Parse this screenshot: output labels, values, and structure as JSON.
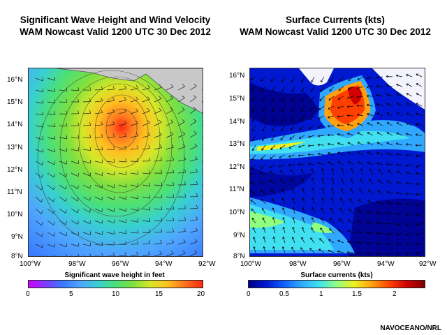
{
  "left_panel": {
    "title_line1": "Significant Wave Height and Wind Velocity",
    "title_line2": "WAM Nowcast Valid 1200 UTC 30 Dec 2012",
    "lat_labels": [
      "16°N",
      "15°N",
      "14°N",
      "13°N",
      "12°N",
      "11°N",
      "10°N",
      "9°N",
      "8°N"
    ],
    "lon_labels": [
      "100°W",
      "98°W",
      "96°W",
      "94°W",
      "92°W"
    ],
    "colorbar_title": "Significant wave height in feet",
    "colorbar_ticks": [
      "0",
      "5",
      "10",
      "15",
      "20"
    ],
    "colorbar_colors": [
      "#d000ff",
      "#7a3cff",
      "#3a7aff",
      "#4fa6ff",
      "#38d0d0",
      "#4be07a",
      "#7ee040",
      "#d8e628",
      "#ffc020",
      "#ff7020",
      "#ff2a10"
    ],
    "contour_labels": [
      "12",
      "14",
      "16",
      "12",
      "13",
      "11",
      "12",
      "13",
      "10",
      "11",
      "12",
      "9",
      "10",
      "9"
    ]
  },
  "right_panel": {
    "title_line1": "Surface Currents (kts)",
    "title_line2": "WAM Nowcast Valid 1200 UTC 30 Dec 2012",
    "lat_labels": [
      "16°N",
      "15°N",
      "14°N",
      "13°N",
      "12°N",
      "11°N",
      "10°N",
      "9°N",
      "8°N"
    ],
    "lon_labels": [
      "100°W",
      "98°W",
      "96°W",
      "94°W",
      "92°W"
    ],
    "colorbar_title": "Surface currents (kts)",
    "colorbar_ticks": [
      "0",
      "0.5",
      "1",
      "1.5",
      "2"
    ],
    "colorbar_colors": [
      "#00008a",
      "#0018d0",
      "#1060ff",
      "#30a8ff",
      "#40e0f0",
      "#90ff80",
      "#f0f020",
      "#ffa010",
      "#ff4000",
      "#d00000",
      "#800000"
    ]
  },
  "credit": "NAVOCEANO/NRL"
}
